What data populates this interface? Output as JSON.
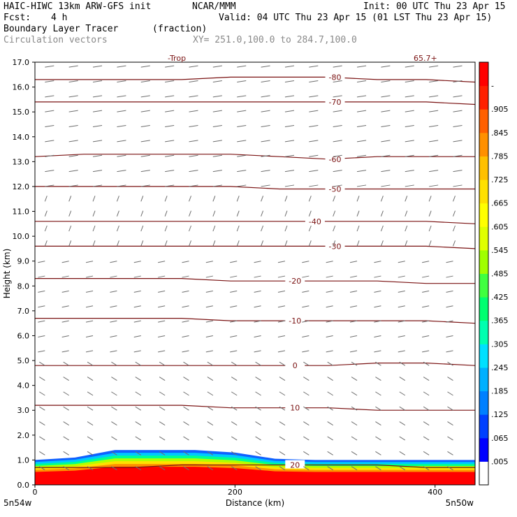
{
  "header": {
    "model": "HAIC-HIWC 13km ARW-GFS init",
    "org": "NCAR/MMM",
    "init": "Init: 00 UTC Thu 23 Apr 15",
    "fcst_label": "Fcst:",
    "fcst_value": "4 h",
    "valid": "Valid: 04 UTC Thu 23 Apr 15 (01 LST Thu 23 Apr 15)",
    "field": "Boundary Layer Tracer",
    "field_units": "(fraction)",
    "vectors": "Circulation vectors",
    "xy": "XY= 251.0,100.0 to 284.7,100.0"
  },
  "top_edge_labels": [
    "-Trop",
    "65.7+"
  ],
  "colors": {
    "contour": "#7a1212",
    "vector": "#6e6e6e",
    "frame": "#000000"
  },
  "chart_data": {
    "type": "heatmap",
    "title": "Boundary Layer Tracer",
    "xlabel": "Distance (km)",
    "ylabel": "Height (km)",
    "xlim": [
      0,
      440
    ],
    "ylim": [
      0,
      17
    ],
    "x_ticks": [
      0,
      200,
      400
    ],
    "x_tick_labels": [
      "0",
      "200",
      "400"
    ],
    "y_ticks": [
      0,
      1,
      2,
      3,
      4,
      5,
      6,
      7,
      8,
      9,
      10,
      11,
      12,
      13,
      14,
      15,
      16,
      17
    ],
    "y_tick_labels": [
      "0.0",
      "1.0",
      "2.0",
      "3.0",
      "4.0",
      "5.0",
      "6.0",
      "7.0",
      "8.0",
      "9.0",
      "10.0",
      "11.0",
      "12.0",
      "13.0",
      "14.0",
      "15.0",
      "16.0",
      "17.0"
    ],
    "x_endpoint_labels": [
      "5n54w",
      "5n50w"
    ],
    "colorbar": {
      "labels": [
        ".005",
        ".065",
        ".125",
        ".185",
        ".245",
        ".305",
        ".365",
        ".425",
        ".485",
        ".545",
        ".605",
        ".665",
        ".725",
        ".785",
        ".845",
        ".905",
        "-"
      ],
      "colors": [
        "#ffffff",
        "#0000ff",
        "#0040ff",
        "#0080ff",
        "#00b0ff",
        "#00e0ff",
        "#00ffb0",
        "#00ff70",
        "#40ff40",
        "#a0ff00",
        "#e0ff00",
        "#ffff00",
        "#ffe000",
        "#ffc000",
        "#ff9000",
        "#ff6000",
        "#ff2000",
        "#ff0000"
      ]
    },
    "temperature_contours": [
      {
        "label": "-80",
        "y": [
          16.3,
          16.3,
          16.3,
          16.3,
          16.4,
          16.4,
          16.4,
          16.3,
          16.3,
          16.2
        ]
      },
      {
        "label": "-70",
        "y": [
          15.4,
          15.4,
          15.4,
          15.4,
          15.4,
          15.4,
          15.4,
          15.4,
          15.4,
          15.3
        ]
      },
      {
        "label": "-60",
        "y": [
          13.2,
          13.3,
          13.3,
          13.3,
          13.3,
          13.2,
          13.1,
          13.2,
          13.2,
          13.2
        ]
      },
      {
        "label": "-50",
        "y": [
          12.0,
          12.0,
          12.0,
          12.0,
          12.0,
          11.9,
          11.9,
          11.9,
          11.9,
          11.9
        ]
      },
      {
        "label": "-40",
        "y": [
          10.6,
          10.6,
          10.6,
          10.6,
          10.6,
          10.6,
          10.6,
          10.6,
          10.6,
          10.5
        ]
      },
      {
        "label": "-30",
        "y": [
          9.6,
          9.6,
          9.6,
          9.6,
          9.6,
          9.6,
          9.6,
          9.6,
          9.6,
          9.5
        ]
      },
      {
        "label": "-20",
        "y": [
          8.3,
          8.3,
          8.3,
          8.3,
          8.2,
          8.2,
          8.2,
          8.2,
          8.1,
          8.1
        ]
      },
      {
        "label": "-10",
        "y": [
          6.7,
          6.7,
          6.7,
          6.7,
          6.6,
          6.6,
          6.6,
          6.6,
          6.6,
          6.5
        ]
      },
      {
        "label": "0",
        "y": [
          4.8,
          4.8,
          4.8,
          4.8,
          4.8,
          4.8,
          4.8,
          4.9,
          4.9,
          4.8
        ]
      },
      {
        "label": "10",
        "y": [
          3.2,
          3.2,
          3.2,
          3.2,
          3.1,
          3.1,
          3.1,
          3.0,
          3.0,
          3.0
        ]
      },
      {
        "label": "20",
        "y": [
          0.7,
          0.7,
          0.7,
          0.8,
          0.8,
          0.8,
          0.8,
          0.8,
          0.7,
          0.7
        ]
      }
    ],
    "contour_label_x": [
      300,
      300,
      300,
      300,
      280,
      300,
      260,
      260,
      260,
      260,
      260
    ],
    "tracer_layer": {
      "x": [
        0,
        40,
        80,
        120,
        160,
        200,
        240,
        280,
        320,
        360,
        400,
        440
      ],
      "top_km": [
        1.0,
        1.1,
        1.4,
        1.4,
        1.4,
        1.3,
        1.05,
        1.0,
        1.0,
        1.0,
        1.0,
        1.0
      ]
    }
  }
}
